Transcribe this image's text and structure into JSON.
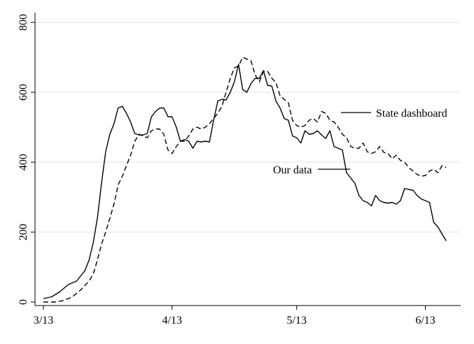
{
  "chart_data": {
    "type": "line",
    "title": "",
    "xlabel": "",
    "ylabel": "",
    "x_ticks": [
      "3/13",
      "4/13",
      "5/13",
      "6/13"
    ],
    "x_tick_days": [
      0,
      31,
      61,
      92
    ],
    "x_range_days": [
      0,
      100
    ],
    "y_ticks": [
      0,
      200,
      400,
      600,
      800
    ],
    "ylim": [
      0,
      800
    ],
    "grid": "horizontal",
    "series": [
      {
        "name": "Our data",
        "style": "solid",
        "color": "#000000",
        "points": [
          [
            0,
            10
          ],
          [
            2,
            15
          ],
          [
            4,
            30
          ],
          [
            6,
            50
          ],
          [
            8,
            60
          ],
          [
            9,
            75
          ],
          [
            10,
            90
          ],
          [
            11,
            120
          ],
          [
            12,
            170
          ],
          [
            13,
            240
          ],
          [
            14,
            340
          ],
          [
            15,
            430
          ],
          [
            16,
            480
          ],
          [
            17,
            510
          ],
          [
            18,
            555
          ],
          [
            19,
            560
          ],
          [
            20,
            540
          ],
          [
            21,
            515
          ],
          [
            22,
            482
          ],
          [
            23,
            478
          ],
          [
            24,
            478
          ],
          [
            25,
            482
          ],
          [
            26,
            530
          ],
          [
            27,
            545
          ],
          [
            28,
            555
          ],
          [
            29,
            555
          ],
          [
            30,
            530
          ],
          [
            31,
            530
          ],
          [
            32,
            500
          ],
          [
            33,
            460
          ],
          [
            34,
            465
          ],
          [
            35,
            460
          ],
          [
            36,
            440
          ],
          [
            37,
            460
          ],
          [
            38,
            458
          ],
          [
            39,
            460
          ],
          [
            40,
            458
          ],
          [
            41,
            520
          ],
          [
            42,
            575
          ],
          [
            43,
            580
          ],
          [
            44,
            578
          ],
          [
            45,
            600
          ],
          [
            46,
            630
          ],
          [
            47,
            680
          ],
          [
            48,
            608
          ],
          [
            49,
            600
          ],
          [
            50,
            625
          ],
          [
            51,
            640
          ],
          [
            52,
            640
          ],
          [
            53,
            662
          ],
          [
            54,
            620
          ],
          [
            55,
            618
          ],
          [
            56,
            575
          ],
          [
            57,
            555
          ],
          [
            58,
            525
          ],
          [
            59,
            520
          ],
          [
            60,
            475
          ],
          [
            61,
            470
          ],
          [
            62,
            455
          ],
          [
            63,
            490
          ],
          [
            64,
            480
          ],
          [
            65,
            482
          ],
          [
            66,
            490
          ],
          [
            67,
            478
          ],
          [
            68,
            468
          ],
          [
            69,
            490
          ],
          [
            70,
            445
          ],
          [
            71,
            440
          ],
          [
            72,
            435
          ],
          [
            73,
            370
          ],
          [
            74,
            355
          ],
          [
            75,
            340
          ],
          [
            76,
            305
          ],
          [
            77,
            290
          ],
          [
            78,
            285
          ],
          [
            79,
            275
          ],
          [
            80,
            305
          ],
          [
            81,
            290
          ],
          [
            82,
            285
          ],
          [
            83,
            283
          ],
          [
            84,
            285
          ],
          [
            85,
            280
          ],
          [
            86,
            290
          ],
          [
            87,
            325
          ],
          [
            88,
            322
          ],
          [
            89,
            320
          ],
          [
            90,
            305
          ],
          [
            91,
            295
          ],
          [
            92,
            290
          ],
          [
            93,
            285
          ],
          [
            94,
            228
          ],
          [
            95,
            215
          ],
          [
            96,
            195
          ],
          [
            97,
            175
          ]
        ]
      },
      {
        "name": "State dashboard",
        "style": "dashed",
        "color": "#000000",
        "points": [
          [
            0,
            0
          ],
          [
            3,
            0
          ],
          [
            5,
            5
          ],
          [
            7,
            15
          ],
          [
            9,
            35
          ],
          [
            11,
            60
          ],
          [
            12,
            80
          ],
          [
            13,
            120
          ],
          [
            14,
            165
          ],
          [
            15,
            200
          ],
          [
            16,
            240
          ],
          [
            17,
            280
          ],
          [
            18,
            335
          ],
          [
            19,
            360
          ],
          [
            20,
            390
          ],
          [
            21,
            420
          ],
          [
            22,
            460
          ],
          [
            23,
            480
          ],
          [
            24,
            475
          ],
          [
            25,
            470
          ],
          [
            26,
            490
          ],
          [
            27,
            495
          ],
          [
            28,
            495
          ],
          [
            29,
            480
          ],
          [
            30,
            435
          ],
          [
            31,
            425
          ],
          [
            32,
            445
          ],
          [
            33,
            460
          ],
          [
            34,
            460
          ],
          [
            35,
            475
          ],
          [
            36,
            495
          ],
          [
            37,
            500
          ],
          [
            38,
            495
          ],
          [
            39,
            500
          ],
          [
            40,
            510
          ],
          [
            41,
            525
          ],
          [
            42,
            540
          ],
          [
            43,
            560
          ],
          [
            44,
            600
          ],
          [
            45,
            640
          ],
          [
            46,
            670
          ],
          [
            47,
            675
          ],
          [
            48,
            700
          ],
          [
            49,
            695
          ],
          [
            50,
            690
          ],
          [
            51,
            650
          ],
          [
            52,
            630
          ],
          [
            53,
            660
          ],
          [
            54,
            660
          ],
          [
            55,
            640
          ],
          [
            56,
            628
          ],
          [
            57,
            590
          ],
          [
            58,
            580
          ],
          [
            59,
            570
          ],
          [
            60,
            520
          ],
          [
            61,
            505
          ],
          [
            62,
            500
          ],
          [
            63,
            505
          ],
          [
            64,
            520
          ],
          [
            65,
            525
          ],
          [
            66,
            515
          ],
          [
            67,
            545
          ],
          [
            68,
            540
          ],
          [
            69,
            520
          ],
          [
            70,
            515
          ],
          [
            71,
            500
          ],
          [
            72,
            480
          ],
          [
            73,
            470
          ],
          [
            74,
            445
          ],
          [
            75,
            440
          ],
          [
            76,
            440
          ],
          [
            77,
            455
          ],
          [
            78,
            430
          ],
          [
            79,
            425
          ],
          [
            80,
            430
          ],
          [
            81,
            445
          ],
          [
            82,
            428
          ],
          [
            83,
            425
          ],
          [
            84,
            410
          ],
          [
            85,
            420
          ],
          [
            86,
            405
          ],
          [
            87,
            400
          ],
          [
            88,
            385
          ],
          [
            89,
            375
          ],
          [
            90,
            365
          ],
          [
            91,
            360
          ],
          [
            92,
            362
          ],
          [
            93,
            375
          ],
          [
            94,
            380
          ],
          [
            95,
            370
          ],
          [
            96,
            390
          ],
          [
            97,
            385
          ]
        ]
      }
    ],
    "legend": {
      "state_label": "State dashboard",
      "our_label": "Our data"
    }
  }
}
